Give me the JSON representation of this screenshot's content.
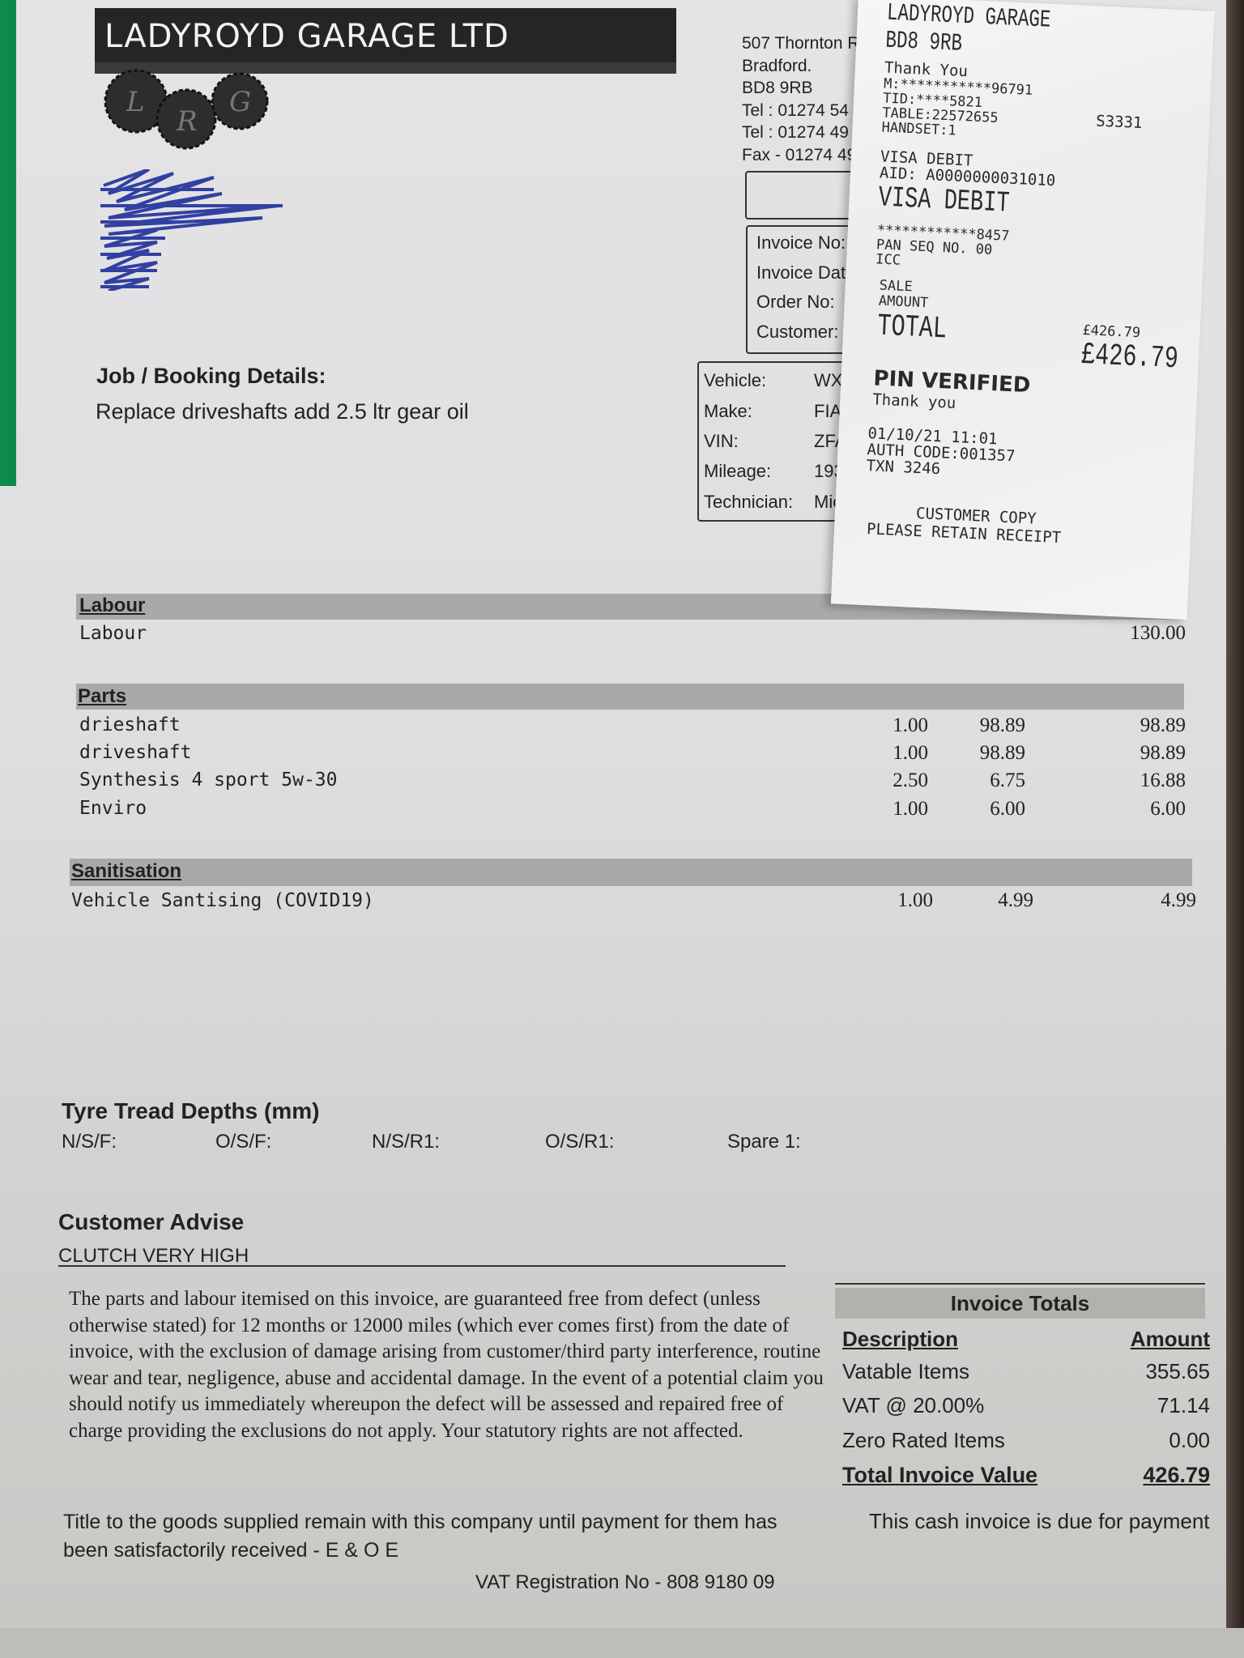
{
  "company": {
    "name": "LADYROYD GARAGE LTD",
    "logo_letters": "LRG"
  },
  "address": [
    "507 Thornton R",
    "Bradford.",
    "BD8 9RB",
    "Tel : 01274 54",
    "Tel : 01274 49",
    "Fax - 01274 49"
  ],
  "invoice_box": {
    "labels": [
      "Invoice No:",
      "Invoice Date:",
      "Order No:",
      "Customer:"
    ]
  },
  "vehicle_box": {
    "rows": [
      {
        "label": "Vehicle:",
        "value": "WX53"
      },
      {
        "label": "Make:",
        "value": "FIAT"
      },
      {
        "label": "VIN:",
        "value": "ZFA2"
      },
      {
        "label": "Mileage:",
        "value": "1936"
      },
      {
        "label": "Technician:",
        "value": "Mich"
      }
    ]
  },
  "job": {
    "heading": "Job / Booking Details:",
    "text": "Replace driveshafts add 2.5 ltr  gear oil"
  },
  "labour": {
    "heading": "Labour",
    "items": [
      {
        "desc": "Labour",
        "total": "130.00"
      }
    ]
  },
  "parts": {
    "heading": "Parts",
    "items": [
      {
        "desc": "drieshaft",
        "qty": "1.00",
        "price": "98.89",
        "total": "98.89"
      },
      {
        "desc": "driveshaft",
        "qty": "1.00",
        "price": "98.89",
        "total": "98.89"
      },
      {
        "desc": "Synthesis 4 sport 5w-30",
        "qty": "2.50",
        "price": "6.75",
        "total": "16.88"
      },
      {
        "desc": "Enviro",
        "qty": "1.00",
        "price": "6.00",
        "total": "6.00"
      }
    ]
  },
  "sanitisation": {
    "heading": "Sanitisation",
    "items": [
      {
        "desc": "Vehicle Santising (COVID19)",
        "qty": "1.00",
        "price": "4.99",
        "total": "4.99"
      }
    ]
  },
  "tyres": {
    "heading": "Tyre Tread Depths (mm)",
    "labels": [
      "N/S/F:",
      "O/S/F:",
      "N/S/R1:",
      "O/S/R1:",
      "Spare 1:"
    ]
  },
  "advise": {
    "heading": "Customer Advise",
    "text": "CLUTCH VERY HIGH"
  },
  "warranty": "The parts and labour itemised on this invoice, are guaranteed free from defect (unless otherwise stated) for 12 months or 12000 miles (which ever comes first) from the date of invoice, with the exclusion of damage arising from customer/third party interference, routine wear and tear, negligence, abuse and accidental damage. In the event of a potential claim you should notify us immediately whereupon the defect will be assessed and repaired free of charge providing the exclusions do not apply. Your statutory rights are not affected.",
  "title_text": "Title to the goods supplied remain with this company until payment for them has been satisfactorily received - E & O E",
  "vat_reg": "VAT Registration No - 808 9180 09",
  "totals": {
    "heading": "Invoice Totals",
    "col_desc": "Description",
    "col_amount": "Amount",
    "rows": [
      {
        "label": "Vatable Items",
        "amount": "355.65"
      },
      {
        "label": "VAT @ 20.00%",
        "amount": "71.14"
      },
      {
        "label": "Zero Rated Items",
        "amount": "0.00"
      }
    ],
    "total_label": "Total Invoice Value",
    "total_amount": "426.79",
    "note": "This cash invoice is due for payment"
  },
  "receipt": {
    "merchant": "LADYROYD GARAGE",
    "postcode": "BD8 9RB",
    "thanks1": "Thank You",
    "m": "M:***********96791",
    "tid": "TID:****5821",
    "table": "TABLE:22572655",
    "handset": "HANDSET:1",
    "code": "S3331",
    "card1": "VISA DEBIT",
    "aid": "AID: A0000000031010",
    "card2": "VISA DEBIT",
    "pan": "************8457",
    "panseq": "PAN SEQ NO. 00",
    "icc": "ICC",
    "sale": "SALE",
    "amount": "AMOUNT",
    "total": "TOTAL",
    "amount_small": "£426.79",
    "amount_big": "£426.79",
    "pin": "PIN VERIFIED",
    "thanks2": "Thank you",
    "datetime": "01/10/21 11:01",
    "auth": "AUTH CODE:001357",
    "txn": "TXN 3246",
    "copy": "CUSTOMER COPY",
    "retain": "PLEASE RETAIN RECEIPT"
  },
  "colors": {
    "header_bar": "#262424",
    "section_bar": "#a9a9ab",
    "redaction_ink": "#1f2f9a",
    "background_green": "#0f8a4e"
  }
}
